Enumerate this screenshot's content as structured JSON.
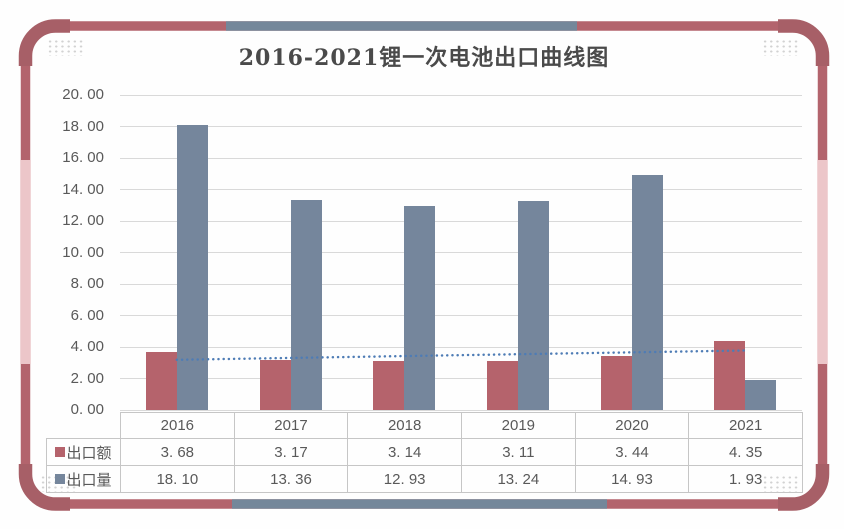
{
  "title": "2016-2021锂一次电池出口曲线图",
  "colors": {
    "frame_maroon": "#b3646d",
    "frame_corner": "#a75f67",
    "frame_pink": "#ecc6c9",
    "frame_bluegray": "#74879a",
    "gridline": "#d9d9d9",
    "table_border": "#c6c6c6",
    "text": "#595959",
    "title_text": "#4a4a4a",
    "trendline": "#4e7cb5",
    "corner_dots": "#d2d2d2"
  },
  "chart_data": {
    "type": "bar",
    "title": "2016-2021锂一次电池出口曲线图",
    "categories": [
      "2016",
      "2017",
      "2018",
      "2019",
      "2020",
      "2021"
    ],
    "series": [
      {
        "name": "出口额",
        "color": "#b5636c",
        "values": [
          3.68,
          3.17,
          3.14,
          3.11,
          3.44,
          4.35
        ]
      },
      {
        "name": "出口量",
        "color": "#75869c",
        "values": [
          18.1,
          13.36,
          12.93,
          13.24,
          14.93,
          1.93
        ]
      }
    ],
    "trendline": {
      "series": "出口额",
      "type": "linear",
      "style": "dotted",
      "color": "#4e7cb5"
    },
    "xlabel": "",
    "ylabel": "",
    "ylim": [
      0,
      20
    ],
    "ytick_step": 2,
    "ytick_labels": [
      "20. 00",
      "18. 00",
      "16. 00",
      "14. 00",
      "12. 00",
      "10. 00",
      "8. 00",
      "6. 00",
      "4. 00",
      "2. 00",
      "0. 00"
    ],
    "grid": true,
    "legend_position": "table-rows-left"
  },
  "table": {
    "header": [
      "2016",
      "2017",
      "2018",
      "2019",
      "2020",
      "2021"
    ],
    "rows": [
      {
        "label": "出口额",
        "swatch_color": "#b5636c",
        "values": [
          "3. 68",
          "3. 17",
          "3. 14",
          "3. 11",
          "3. 44",
          "4. 35"
        ]
      },
      {
        "label": "出口量",
        "swatch_color": "#75869c",
        "values": [
          "18. 10",
          "13. 36",
          "12. 93",
          "13. 24",
          "14. 93",
          "1. 93"
        ]
      }
    ]
  }
}
